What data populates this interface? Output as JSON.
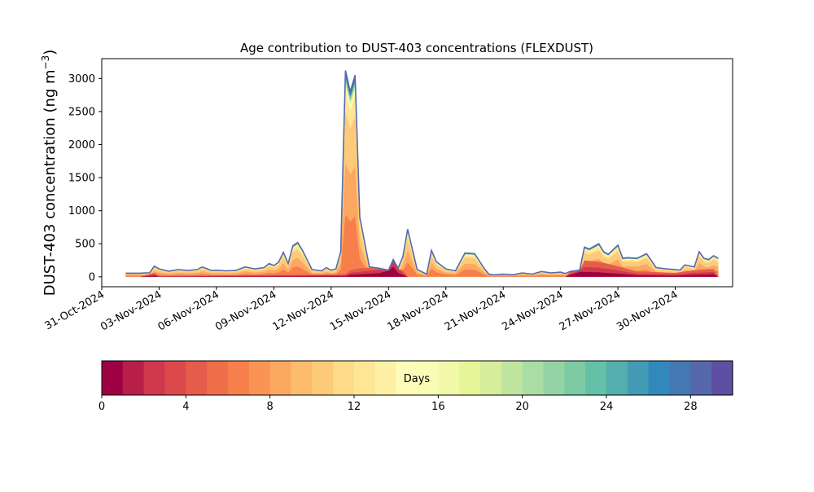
{
  "chart_data": [
    {
      "type": "area",
      "subtype": "stacked-area",
      "title": "Age contribution to DUST-403 concentrations (FLEXDUST)",
      "ylabel": "DUST-403 concentration (ng m",
      "ylabel_sup": "−3",
      "ylabel_close": ")",
      "xlabel": "",
      "ylim": [
        -150,
        3300
      ],
      "xlim": [
        "2024-10-31",
        "2024-12-03"
      ],
      "y_ticks": [
        0,
        500,
        1000,
        1500,
        2000,
        2500,
        3000
      ],
      "y_tick_labels": [
        "0",
        "500",
        "1000",
        "1500",
        "2000",
        "2500",
        "3000"
      ],
      "x_ticks": [
        "2024-10-31",
        "2024-11-03",
        "2024-11-06",
        "2024-11-09",
        "2024-11-12",
        "2024-11-15",
        "2024-11-18",
        "2024-11-21",
        "2024-11-24",
        "2024-11-27",
        "2024-11-30"
      ],
      "x_tick_labels": [
        "31-Oct-2024",
        "03-Nov-2024",
        "06-Nov-2024",
        "09-Nov-2024",
        "12-Nov-2024",
        "15-Nov-2024",
        "18-Nov-2024",
        "21-Nov-2024",
        "24-Nov-2024",
        "27-Nov-2024",
        "30-Nov-2024"
      ],
      "grid": false,
      "legend": "none",
      "series_note": "30 stacked age classes (0-30 days), colored by the Spectral colormap",
      "total": {
        "x": [
          "2024-11-01T06:00",
          "2024-11-02",
          "2024-11-02T06:00",
          "2024-11-02T12:00",
          "2024-11-02T18:00",
          "2024-11-03",
          "2024-11-03T12:00",
          "2024-11-04",
          "2024-11-04T12:00",
          "2024-11-05",
          "2024-11-05T06:00",
          "2024-11-05T18:00",
          "2024-11-06",
          "2024-11-06T12:00",
          "2024-11-07",
          "2024-11-07T12:00",
          "2024-11-08",
          "2024-11-08T12:00",
          "2024-11-08T18:00",
          "2024-11-09",
          "2024-11-09T06:00",
          "2024-11-09T12:00",
          "2024-11-09T18:00",
          "2024-11-10",
          "2024-11-10T06:00",
          "2024-11-10T12:00",
          "2024-11-11",
          "2024-11-11T12:00",
          "2024-11-11T18:00",
          "2024-11-12",
          "2024-11-12T06:00",
          "2024-11-12T12:00",
          "2024-11-12T18:00",
          "2024-11-13",
          "2024-11-13T06:00",
          "2024-11-13T12:00",
          "2024-11-14",
          "2024-11-14T12:00",
          "2024-11-15",
          "2024-11-15T06:00",
          "2024-11-15T12:00",
          "2024-11-15T18:00",
          "2024-11-16",
          "2024-11-16T12:00",
          "2024-11-17",
          "2024-11-17T06:00",
          "2024-11-17T12:00",
          "2024-11-18",
          "2024-11-18T12:00",
          "2024-11-19",
          "2024-11-19T12:00",
          "2024-11-20",
          "2024-11-20T06:00",
          "2024-11-20T12:00",
          "2024-11-21",
          "2024-11-21T12:00",
          "2024-11-22",
          "2024-11-22T12:00",
          "2024-11-23",
          "2024-11-23T12:00",
          "2024-11-24",
          "2024-11-24T06:00",
          "2024-11-24T12:00",
          "2024-11-25",
          "2024-11-25T06:00",
          "2024-11-25T12:00",
          "2024-11-26",
          "2024-11-26T06:00",
          "2024-11-26T12:00",
          "2024-11-27",
          "2024-11-27T06:00",
          "2024-11-27T12:00",
          "2024-11-28",
          "2024-11-28T12:00",
          "2024-11-29",
          "2024-11-29T12:00",
          "2024-11-30",
          "2024-11-30T06:00",
          "2024-11-30T12:00",
          "2024-12-01",
          "2024-12-01T06:00",
          "2024-12-01T12:00",
          "2024-12-01T18:00",
          "2024-12-02",
          "2024-12-02T06:00"
        ],
        "values": [
          55,
          55,
          58,
          60,
          160,
          120,
          85,
          110,
          95,
          110,
          150,
          95,
          100,
          90,
          95,
          150,
          120,
          140,
          200,
          170,
          220,
          370,
          200,
          470,
          520,
          400,
          110,
          90,
          140,
          100,
          120,
          380,
          3120,
          2800,
          3050,
          900,
          150,
          130,
          100,
          260,
          130,
          300,
          720,
          110,
          40,
          400,
          230,
          120,
          90,
          360,
          350,
          130,
          40,
          30,
          40,
          30,
          60,
          40,
          80,
          60,
          70,
          50,
          80,
          100,
          450,
          420,
          500,
          380,
          340,
          480,
          280,
          290,
          280,
          350,
          140,
          120,
          110,
          100,
          180,
          150,
          380,
          280,
          260,
          320,
          280
        ]
      },
      "young_component": {
        "x": [
          "2024-11-02",
          "2024-11-02T18:00",
          "2024-11-03",
          "2024-11-12T18:00",
          "2024-11-13",
          "2024-11-14T12:00",
          "2024-11-15",
          "2024-11-15T06:00",
          "2024-11-15T12:00",
          "2024-11-16",
          "2024-11-24",
          "2024-11-24T06:00",
          "2024-11-25",
          "2024-11-26",
          "2024-11-27",
          "2024-11-28",
          "2024-11-30",
          "2024-12-01",
          "2024-12-02",
          "2024-12-02T06:00"
        ],
        "values": [
          0,
          60,
          10,
          40,
          100,
          180,
          350,
          520,
          200,
          0,
          0,
          0,
          250,
          230,
          160,
          80,
          60,
          100,
          120,
          130
        ]
      },
      "colorbar": {
        "label": "Days",
        "ticks": [
          0,
          4,
          8,
          12,
          16,
          20,
          24,
          28
        ],
        "tick_labels": [
          "0",
          "4",
          "8",
          "12",
          "16",
          "20",
          "24",
          "28"
        ],
        "range": [
          0,
          30
        ],
        "colors": [
          "#9e0142",
          "#b81f48",
          "#d0384e",
          "#dc494c",
          "#e65c4b",
          "#f06e4a",
          "#f67f4b",
          "#f99455",
          "#fca860",
          "#fdbb6c",
          "#fdca79",
          "#fedb87",
          "#fee695",
          "#fef1a6",
          "#fffbb8",
          "#f9fcb4",
          "#f1f9a9",
          "#e6f598",
          "#d5ee9b",
          "#c0e5a0",
          "#aadda4",
          "#94d4a4",
          "#7ccba5",
          "#64c0a6",
          "#53aead",
          "#439bb5",
          "#3288bd",
          "#4378b3",
          "#5668ab",
          "#5e4fa2"
        ]
      }
    }
  ]
}
